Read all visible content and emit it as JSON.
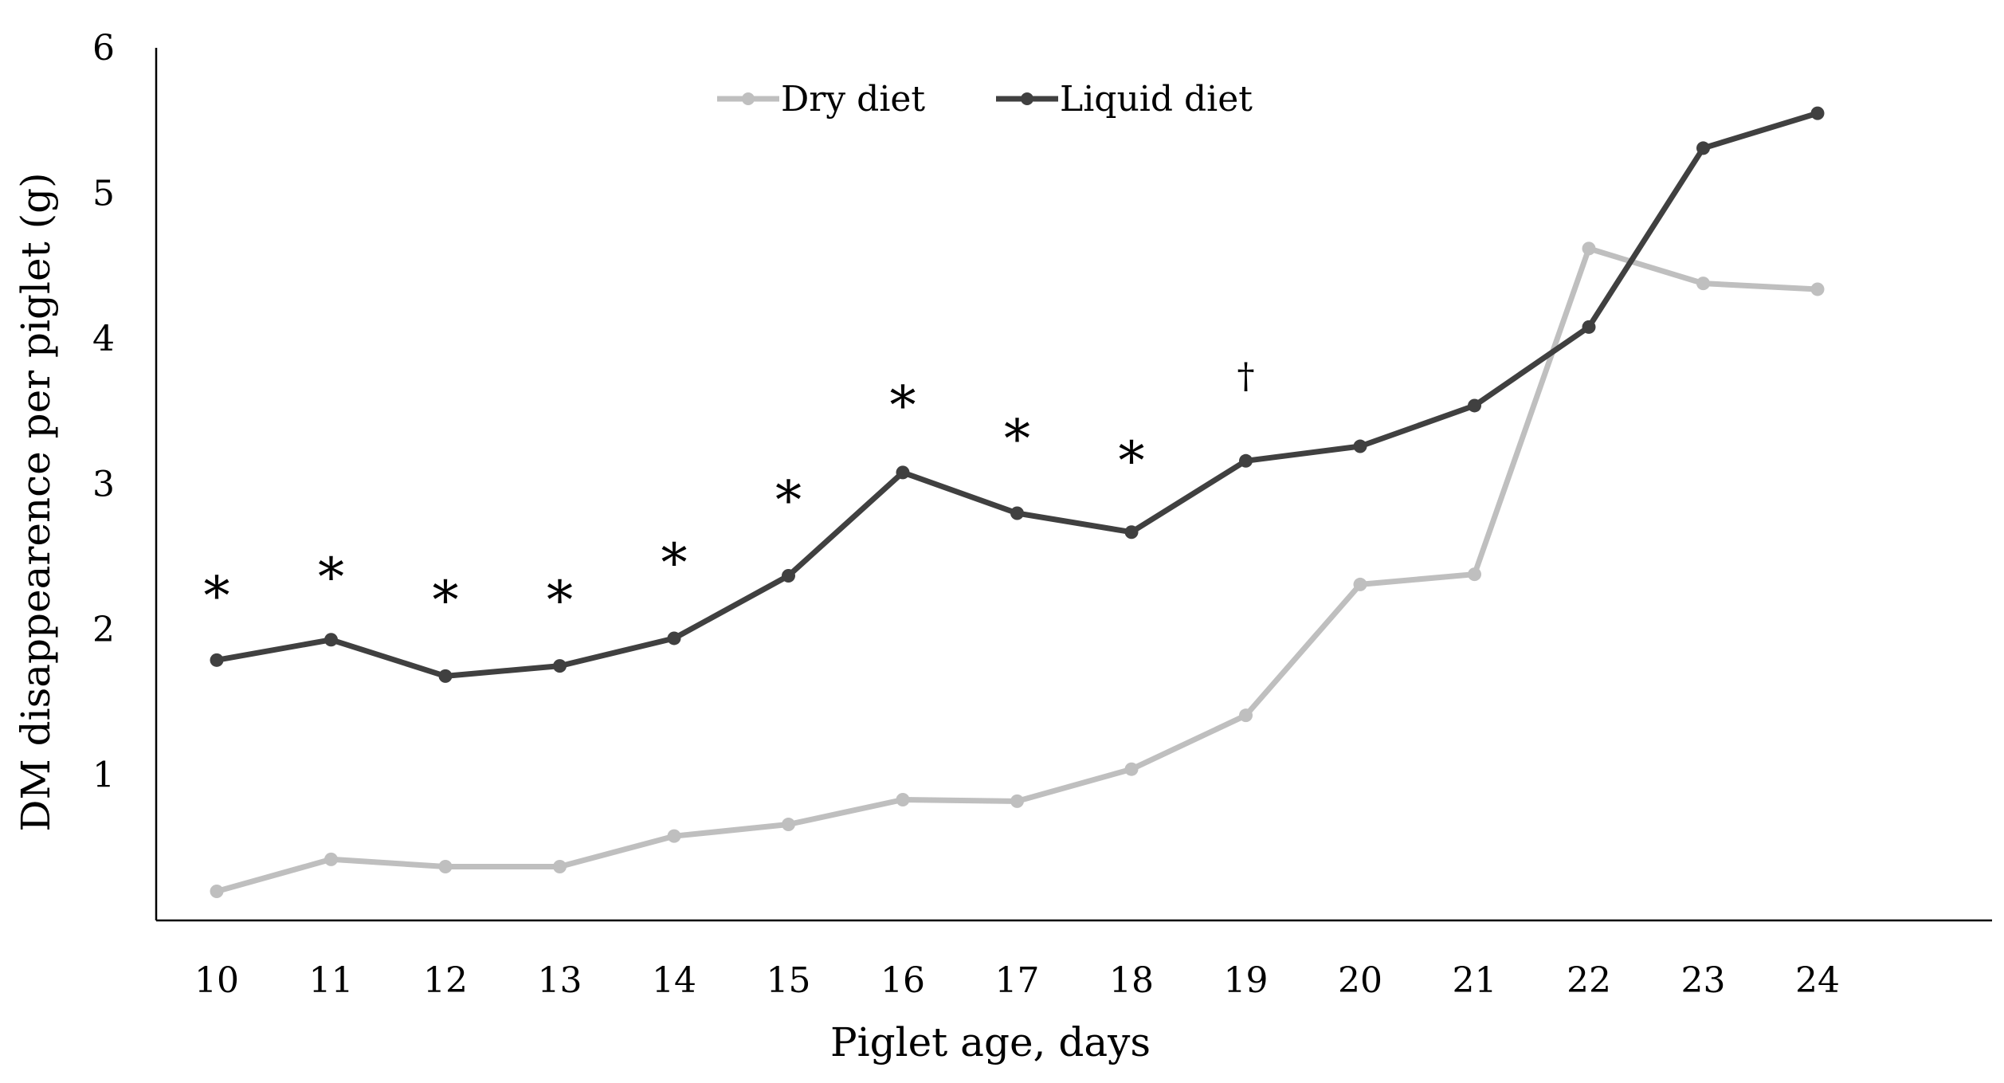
{
  "chart_data": {
    "type": "line",
    "title": "",
    "xlabel": "Piglet age, days",
    "ylabel": "DM disappearence per piglet (g)",
    "x": [
      10,
      11,
      12,
      13,
      14,
      15,
      16,
      17,
      18,
      19,
      20,
      21,
      22,
      23,
      24
    ],
    "x_tick_labels": [
      "10",
      "11",
      "12",
      "13",
      "14",
      "15",
      "16",
      "17",
      "18",
      "19",
      "20",
      "21",
      "22",
      "23",
      "24"
    ],
    "y_tick_labels": [
      "1",
      "2",
      "3",
      "4",
      "5",
      "6"
    ],
    "y_ticks": [
      1,
      2,
      3,
      4,
      5,
      6
    ],
    "ylim": [
      0,
      6
    ],
    "grid": false,
    "legend_position": "top-center",
    "series": [
      {
        "name": "Dry diet",
        "color": "#bfbfbf",
        "values": [
          0.2,
          0.42,
          0.37,
          0.37,
          0.58,
          0.66,
          0.83,
          0.82,
          1.04,
          1.41,
          2.31,
          2.38,
          4.62,
          4.38,
          4.34
        ]
      },
      {
        "name": "Liquid diet",
        "color": "#404040",
        "values": [
          1.79,
          1.93,
          1.68,
          1.75,
          1.94,
          2.37,
          3.08,
          2.8,
          2.67,
          3.16,
          3.26,
          3.54,
          4.08,
          5.31,
          5.55
        ]
      }
    ],
    "annotations": [
      {
        "x": 10,
        "y": 2.27,
        "text": "*"
      },
      {
        "x": 11,
        "y": 2.4,
        "text": "*"
      },
      {
        "x": 12,
        "y": 2.24,
        "text": "*"
      },
      {
        "x": 13,
        "y": 2.24,
        "text": "*"
      },
      {
        "x": 14,
        "y": 2.5,
        "text": "*"
      },
      {
        "x": 15,
        "y": 2.93,
        "text": "*"
      },
      {
        "x": 16,
        "y": 3.58,
        "text": "*"
      },
      {
        "x": 17,
        "y": 3.35,
        "text": "*"
      },
      {
        "x": 18,
        "y": 3.2,
        "text": "*"
      },
      {
        "x": 19,
        "y": 3.76,
        "text": "†"
      }
    ]
  }
}
